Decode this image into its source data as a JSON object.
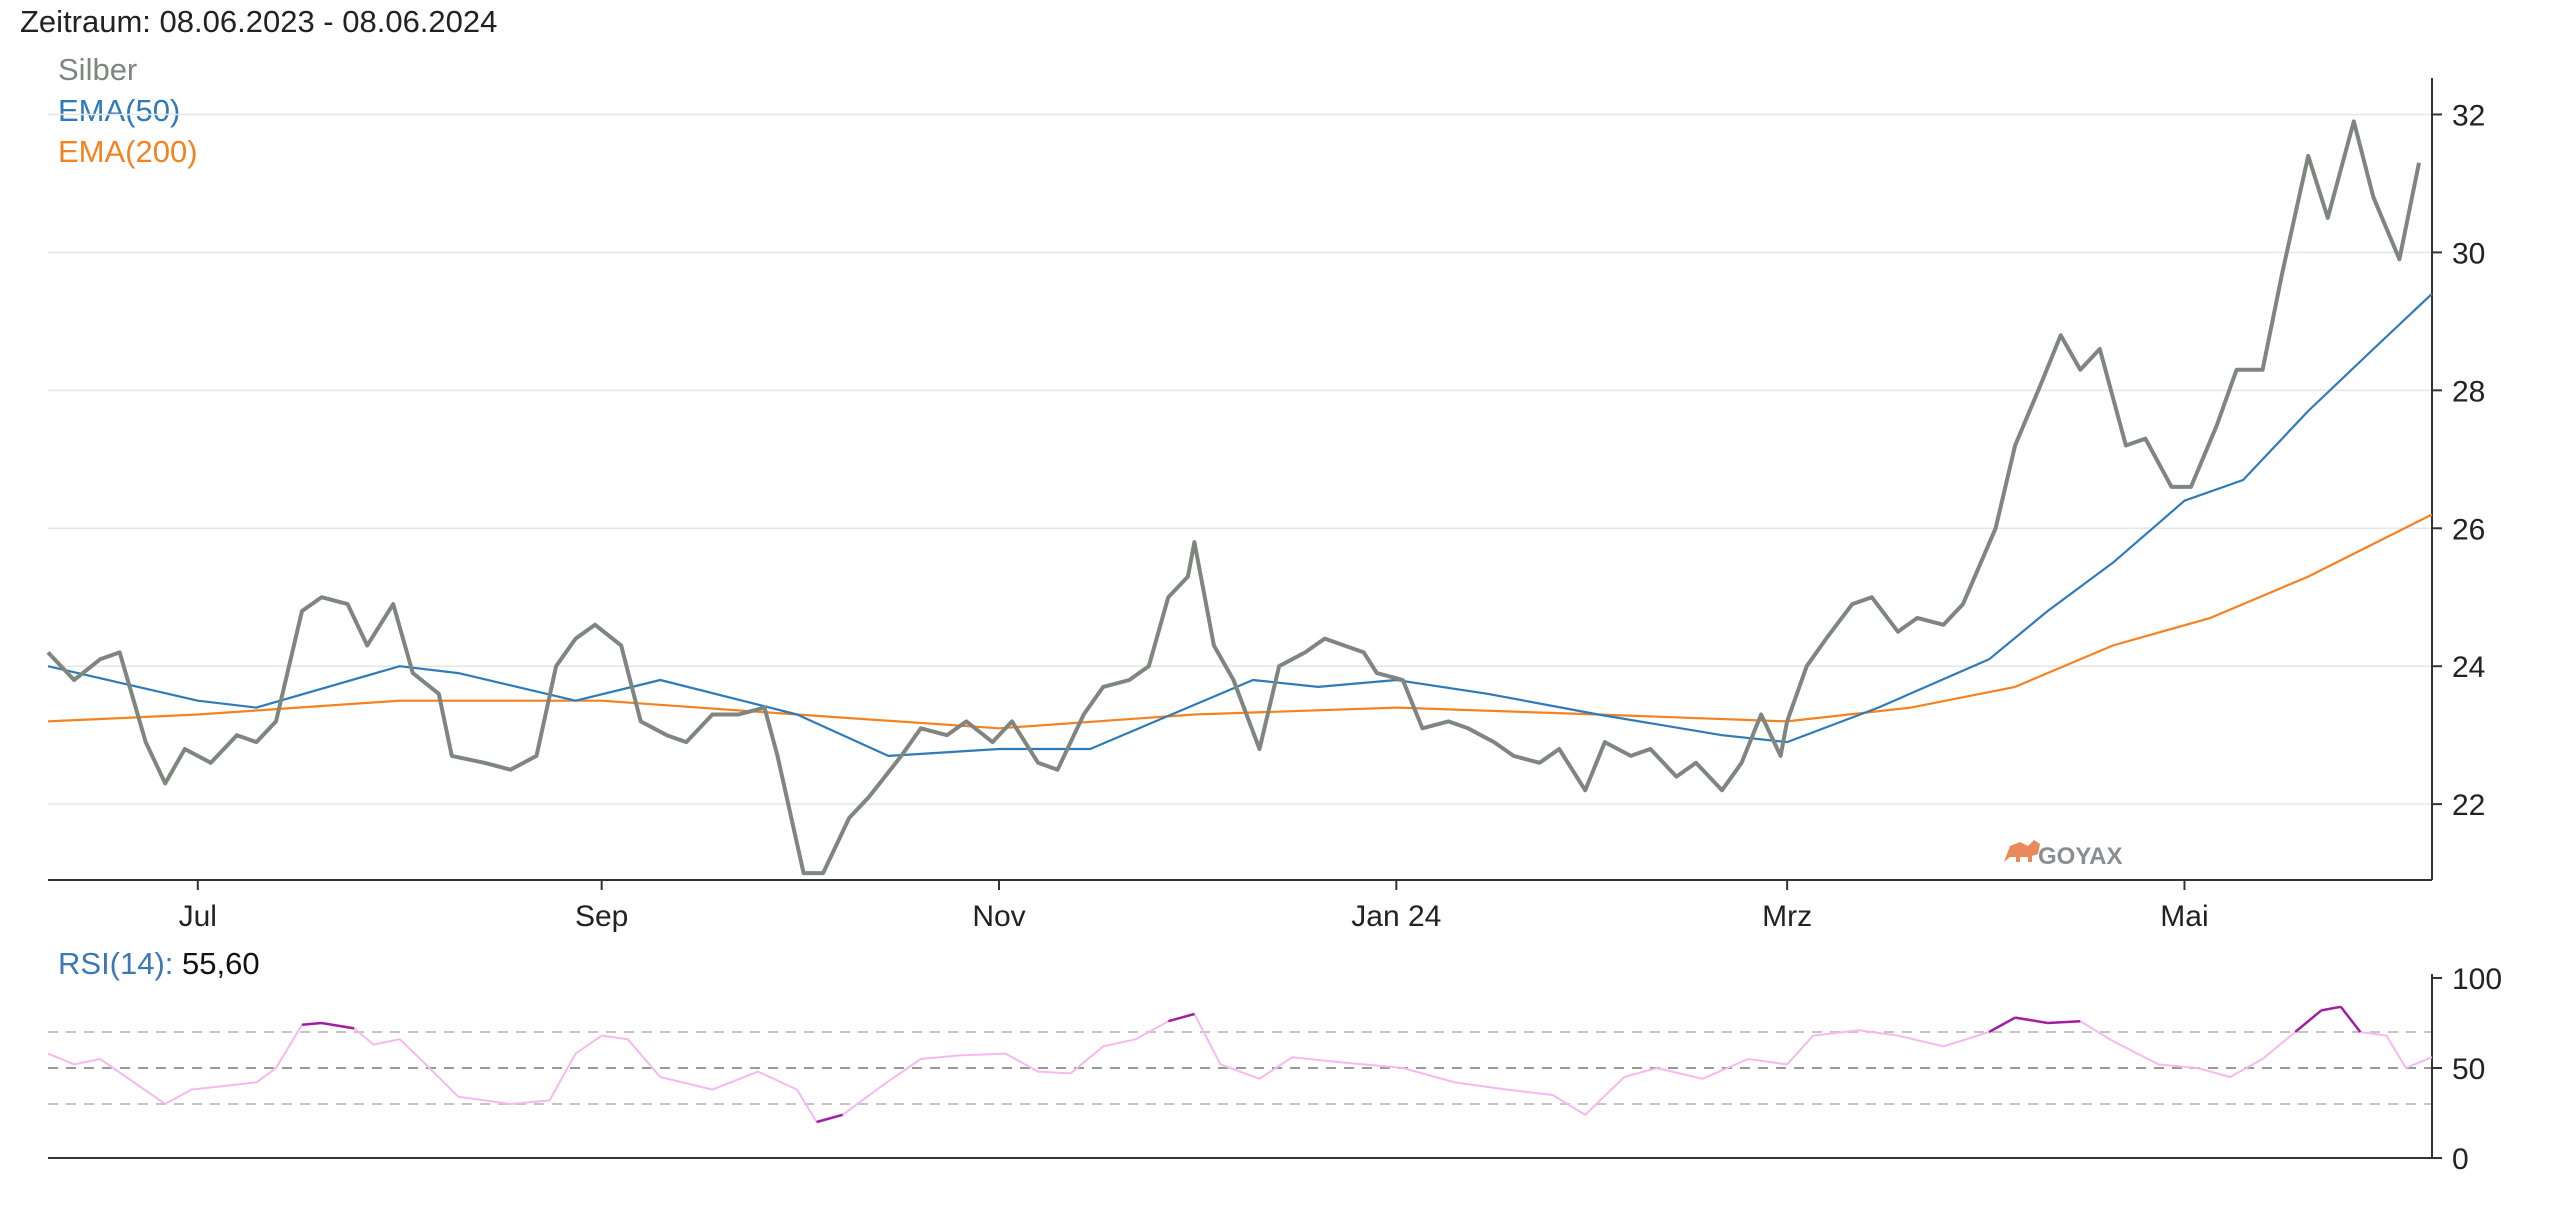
{
  "header": {
    "period": "Zeitraum: 08.06.2023 - 08.06.2024"
  },
  "legend": [
    {
      "name": "Silber",
      "color": "#7e867f"
    },
    {
      "name": "EMA(50)",
      "color": "#2f7ab8"
    },
    {
      "name": "EMA(200)",
      "color": "#f58220"
    }
  ],
  "watermark": {
    "text": "GOYAX",
    "icon": "bull-icon",
    "color": "#e98a5d"
  },
  "rsi_label": {
    "key": "RSI(14):",
    "value": "55,60"
  },
  "chart_data": [
    {
      "type": "line",
      "title": "",
      "x_range": [
        "2023-06-08",
        "2024-06-08"
      ],
      "x_tick_labels": [
        {
          "date": "2023-07-01",
          "label": "Jul"
        },
        {
          "date": "2023-09-01",
          "label": "Sep"
        },
        {
          "date": "2023-11-01",
          "label": "Nov"
        },
        {
          "date": "2024-01-01",
          "label": "Jan 24"
        },
        {
          "date": "2024-03-01",
          "label": "Mrz"
        },
        {
          "date": "2024-05-01",
          "label": "Mai"
        }
      ],
      "y_ticks": [
        22,
        24,
        26,
        28,
        30,
        32
      ],
      "ylim": [
        20.9,
        32.5
      ],
      "grid": true,
      "legend_position": "top-left",
      "series": [
        {
          "name": "Silber",
          "color": "#7e867f",
          "points": [
            [
              "2023-06-08",
              24.2
            ],
            [
              "2023-06-12",
              23.8
            ],
            [
              "2023-06-16",
              24.1
            ],
            [
              "2023-06-19",
              24.2
            ],
            [
              "2023-06-23",
              22.9
            ],
            [
              "2023-06-26",
              22.3
            ],
            [
              "2023-06-29",
              22.8
            ],
            [
              "2023-07-03",
              22.6
            ],
            [
              "2023-07-07",
              23.0
            ],
            [
              "2023-07-10",
              22.9
            ],
            [
              "2023-07-13",
              23.2
            ],
            [
              "2023-07-17",
              24.8
            ],
            [
              "2023-07-20",
              25.0
            ],
            [
              "2023-07-24",
              24.9
            ],
            [
              "2023-07-27",
              24.3
            ],
            [
              "2023-07-31",
              24.9
            ],
            [
              "2023-08-03",
              23.9
            ],
            [
              "2023-08-07",
              23.6
            ],
            [
              "2023-08-09",
              22.7
            ],
            [
              "2023-08-14",
              22.6
            ],
            [
              "2023-08-18",
              22.5
            ],
            [
              "2023-08-22",
              22.7
            ],
            [
              "2023-08-25",
              24.0
            ],
            [
              "2023-08-28",
              24.4
            ],
            [
              "2023-08-31",
              24.6
            ],
            [
              "2023-09-04",
              24.3
            ],
            [
              "2023-09-07",
              23.2
            ],
            [
              "2023-09-11",
              23.0
            ],
            [
              "2023-09-14",
              22.9
            ],
            [
              "2023-09-18",
              23.3
            ],
            [
              "2023-09-22",
              23.3
            ],
            [
              "2023-09-26",
              23.4
            ],
            [
              "2023-09-28",
              22.7
            ],
            [
              "2023-10-02",
              21.0
            ],
            [
              "2023-10-05",
              21.0
            ],
            [
              "2023-10-09",
              21.8
            ],
            [
              "2023-10-12",
              22.1
            ],
            [
              "2023-10-17",
              22.7
            ],
            [
              "2023-10-20",
              23.1
            ],
            [
              "2023-10-24",
              23.0
            ],
            [
              "2023-10-27",
              23.2
            ],
            [
              "2023-10-31",
              22.9
            ],
            [
              "2023-11-03",
              23.2
            ],
            [
              "2023-11-07",
              22.6
            ],
            [
              "2023-11-10",
              22.5
            ],
            [
              "2023-11-14",
              23.3
            ],
            [
              "2023-11-17",
              23.7
            ],
            [
              "2023-11-21",
              23.8
            ],
            [
              "2023-11-24",
              24.0
            ],
            [
              "2023-11-27",
              25.0
            ],
            [
              "2023-11-30",
              25.3
            ],
            [
              "2023-12-01",
              25.8
            ],
            [
              "2023-12-04",
              24.3
            ],
            [
              "2023-12-07",
              23.8
            ],
            [
              "2023-12-11",
              22.8
            ],
            [
              "2023-12-14",
              24.0
            ],
            [
              "2023-12-18",
              24.2
            ],
            [
              "2023-12-21",
              24.4
            ],
            [
              "2023-12-27",
              24.2
            ],
            [
              "2023-12-29",
              23.9
            ],
            [
              "2024-01-02",
              23.8
            ],
            [
              "2024-01-05",
              23.1
            ],
            [
              "2024-01-09",
              23.2
            ],
            [
              "2024-01-12",
              23.1
            ],
            [
              "2024-01-16",
              22.9
            ],
            [
              "2024-01-19",
              22.7
            ],
            [
              "2024-01-23",
              22.6
            ],
            [
              "2024-01-26",
              22.8
            ],
            [
              "2024-01-30",
              22.2
            ],
            [
              "2024-02-02",
              22.9
            ],
            [
              "2024-02-06",
              22.7
            ],
            [
              "2024-02-09",
              22.8
            ],
            [
              "2024-02-13",
              22.4
            ],
            [
              "2024-02-16",
              22.6
            ],
            [
              "2024-02-20",
              22.2
            ],
            [
              "2024-02-23",
              22.6
            ],
            [
              "2024-02-26",
              23.3
            ],
            [
              "2024-02-29",
              22.7
            ],
            [
              "2024-03-01",
              23.2
            ],
            [
              "2024-03-04",
              24.0
            ],
            [
              "2024-03-07",
              24.4
            ],
            [
              "2024-03-11",
              24.9
            ],
            [
              "2024-03-14",
              25.0
            ],
            [
              "2024-03-18",
              24.5
            ],
            [
              "2024-03-21",
              24.7
            ],
            [
              "2024-03-25",
              24.6
            ],
            [
              "2024-03-28",
              24.9
            ],
            [
              "2024-04-02",
              26.0
            ],
            [
              "2024-04-05",
              27.2
            ],
            [
              "2024-04-09",
              28.1
            ],
            [
              "2024-04-12",
              28.8
            ],
            [
              "2024-04-15",
              28.3
            ],
            [
              "2024-04-18",
              28.6
            ],
            [
              "2024-04-22",
              27.2
            ],
            [
              "2024-04-25",
              27.3
            ],
            [
              "2024-04-29",
              26.6
            ],
            [
              "2024-05-02",
              26.6
            ],
            [
              "2024-05-06",
              27.5
            ],
            [
              "2024-05-09",
              28.3
            ],
            [
              "2024-05-13",
              28.3
            ],
            [
              "2024-05-16",
              29.7
            ],
            [
              "2024-05-20",
              31.4
            ],
            [
              "2024-05-23",
              30.5
            ],
            [
              "2024-05-27",
              31.9
            ],
            [
              "2024-05-30",
              30.8
            ],
            [
              "2024-06-03",
              29.9
            ],
            [
              "2024-06-06",
              31.3
            ]
          ]
        },
        {
          "name": "EMA(50)",
          "color": "#2f7ab8",
          "points": [
            [
              "2023-06-08",
              24.0
            ],
            [
              "2023-07-01",
              23.5
            ],
            [
              "2023-07-10",
              23.4
            ],
            [
              "2023-08-01",
              24.0
            ],
            [
              "2023-08-10",
              23.9
            ],
            [
              "2023-08-28",
              23.5
            ],
            [
              "2023-09-10",
              23.8
            ],
            [
              "2023-10-01",
              23.3
            ],
            [
              "2023-10-15",
              22.7
            ],
            [
              "2023-11-01",
              22.8
            ],
            [
              "2023-11-15",
              22.8
            ],
            [
              "2023-11-25",
              23.2
            ],
            [
              "2023-12-10",
              23.8
            ],
            [
              "2023-12-20",
              23.7
            ],
            [
              "2024-01-01",
              23.8
            ],
            [
              "2024-01-15",
              23.6
            ],
            [
              "2024-02-01",
              23.3
            ],
            [
              "2024-02-20",
              23.0
            ],
            [
              "2024-03-01",
              22.9
            ],
            [
              "2024-03-15",
              23.4
            ],
            [
              "2024-04-01",
              24.1
            ],
            [
              "2024-04-10",
              24.8
            ],
            [
              "2024-04-20",
              25.5
            ],
            [
              "2024-05-01",
              26.4
            ],
            [
              "2024-05-10",
              26.7
            ],
            [
              "2024-05-20",
              27.7
            ],
            [
              "2024-05-30",
              28.6
            ],
            [
              "2024-06-08",
              29.4
            ]
          ]
        },
        {
          "name": "EMA(200)",
          "color": "#f58220",
          "points": [
            [
              "2023-06-08",
              23.2
            ],
            [
              "2023-07-01",
              23.3
            ],
            [
              "2023-08-01",
              23.5
            ],
            [
              "2023-09-01",
              23.5
            ],
            [
              "2023-10-01",
              23.3
            ],
            [
              "2023-11-01",
              23.1
            ],
            [
              "2023-12-01",
              23.3
            ],
            [
              "2024-01-01",
              23.4
            ],
            [
              "2024-02-01",
              23.3
            ],
            [
              "2024-03-01",
              23.2
            ],
            [
              "2024-03-20",
              23.4
            ],
            [
              "2024-04-05",
              23.7
            ],
            [
              "2024-04-20",
              24.3
            ],
            [
              "2024-05-05",
              24.7
            ],
            [
              "2024-05-20",
              25.3
            ],
            [
              "2024-06-08",
              26.2
            ]
          ]
        }
      ]
    },
    {
      "type": "line",
      "title": "RSI(14)",
      "x_range": [
        "2023-06-08",
        "2024-06-08"
      ],
      "y_ticks": [
        0,
        50,
        100
      ],
      "ylim": [
        0,
        100
      ],
      "reference_lines": [
        30,
        50,
        70
      ],
      "thresholds": {
        "low": 30,
        "high": 70
      },
      "series": [
        {
          "name": "RSI(14)",
          "color": "#f5b9f0",
          "extreme_color": "#a01fa0",
          "points": [
            [
              "2023-06-08",
              58
            ],
            [
              "2023-06-12",
              52
            ],
            [
              "2023-06-16",
              55
            ],
            [
              "2023-06-20",
              45
            ],
            [
              "2023-06-26",
              30
            ],
            [
              "2023-06-30",
              38
            ],
            [
              "2023-07-05",
              40
            ],
            [
              "2023-07-10",
              42
            ],
            [
              "2023-07-13",
              50
            ],
            [
              "2023-07-17",
              74
            ],
            [
              "2023-07-20",
              75
            ],
            [
              "2023-07-25",
              72
            ],
            [
              "2023-07-28",
              63
            ],
            [
              "2023-08-01",
              66
            ],
            [
              "2023-08-05",
              52
            ],
            [
              "2023-08-10",
              34
            ],
            [
              "2023-08-18",
              30
            ],
            [
              "2023-08-24",
              32
            ],
            [
              "2023-08-28",
              58
            ],
            [
              "2023-09-01",
              68
            ],
            [
              "2023-09-05",
              66
            ],
            [
              "2023-09-10",
              45
            ],
            [
              "2023-09-18",
              38
            ],
            [
              "2023-09-25",
              48
            ],
            [
              "2023-10-01",
              38
            ],
            [
              "2023-10-04",
              20
            ],
            [
              "2023-10-08",
              24
            ],
            [
              "2023-10-14",
              40
            ],
            [
              "2023-10-20",
              55
            ],
            [
              "2023-10-26",
              57
            ],
            [
              "2023-11-02",
              58
            ],
            [
              "2023-11-07",
              48
            ],
            [
              "2023-11-12",
              47
            ],
            [
              "2023-11-17",
              62
            ],
            [
              "2023-11-22",
              66
            ],
            [
              "2023-11-27",
              76
            ],
            [
              "2023-12-01",
              80
            ],
            [
              "2023-12-05",
              52
            ],
            [
              "2023-12-11",
              44
            ],
            [
              "2023-12-16",
              56
            ],
            [
              "2023-12-24",
              53
            ],
            [
              "2024-01-02",
              50
            ],
            [
              "2024-01-10",
              42
            ],
            [
              "2024-01-18",
              38
            ],
            [
              "2024-01-25",
              35
            ],
            [
              "2024-01-30",
              24
            ],
            [
              "2024-02-05",
              45
            ],
            [
              "2024-02-10",
              50
            ],
            [
              "2024-02-17",
              44
            ],
            [
              "2024-02-24",
              55
            ],
            [
              "2024-03-01",
              52
            ],
            [
              "2024-03-05",
              68
            ],
            [
              "2024-03-12",
              71
            ],
            [
              "2024-03-18",
              68
            ],
            [
              "2024-03-25",
              62
            ],
            [
              "2024-04-01",
              70
            ],
            [
              "2024-04-05",
              78
            ],
            [
              "2024-04-10",
              75
            ],
            [
              "2024-04-15",
              76
            ],
            [
              "2024-04-20",
              65
            ],
            [
              "2024-04-27",
              52
            ],
            [
              "2024-05-03",
              50
            ],
            [
              "2024-05-08",
              45
            ],
            [
              "2024-05-13",
              55
            ],
            [
              "2024-05-18",
              70
            ],
            [
              "2024-05-22",
              82
            ],
            [
              "2024-05-25",
              84
            ],
            [
              "2024-05-28",
              70
            ],
            [
              "2024-06-01",
              68
            ],
            [
              "2024-06-04",
              50
            ],
            [
              "2024-06-08",
              56
            ]
          ]
        }
      ]
    }
  ]
}
